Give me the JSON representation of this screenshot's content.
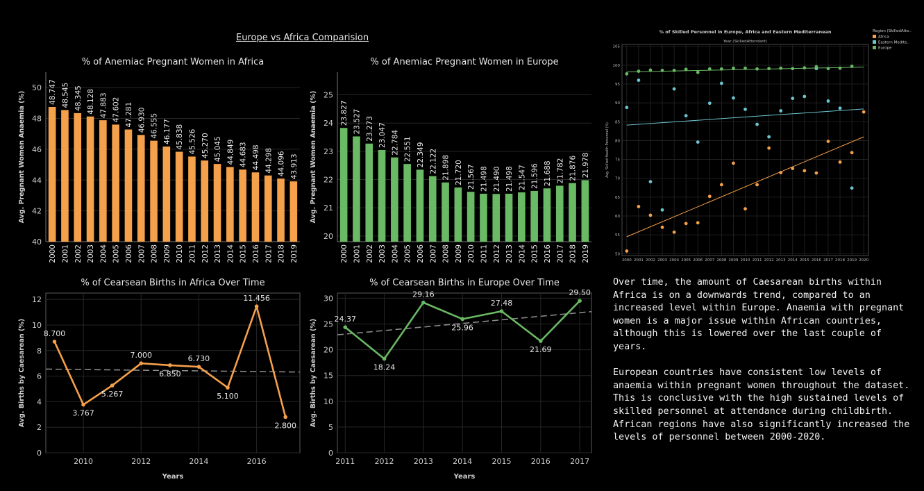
{
  "header": {
    "title": "Europe vs Africa Comparision"
  },
  "commentary": {
    "paragraphs": [
      "Over time, the amount of Caesarean births within Africa is on a downwards trend, compared to an increased level within Europe. Anaemia with pregnant women is a major issue within African countries, although this is lowered over the last couple of years.",
      "European countries have consistent low levels of anaemia within pregnant women throughout the dataset. This is conclusive with the high sustained levels of skilled personnel at attendance during childbirth. African regions have also significantly increased the levels of personnel between 2000-2020."
    ]
  },
  "colors": {
    "africa": "#f5a04a",
    "europe": "#6ab964",
    "eastern_mediterranean": "#6cc5cf",
    "background": "#000000",
    "grid": "#2b2b2b"
  },
  "chart_data": [
    {
      "id": "africa-anaemia",
      "type": "bar",
      "title": "% of Anemiac Pregnant Women in Africa",
      "ylabel": "Avg. Pregnant Women Anaemia (%)",
      "ylim": [
        40,
        51
      ],
      "yticks": [
        40,
        42,
        44,
        46,
        48,
        50
      ],
      "color": "#f5a04a",
      "categories": [
        "2000",
        "2001",
        "2002",
        "2003",
        "2004",
        "2005",
        "2006",
        "2007",
        "2008",
        "2009",
        "2010",
        "2011",
        "2012",
        "2013",
        "2014",
        "2015",
        "2016",
        "2017",
        "2018",
        "2019"
      ],
      "values": [
        48.747,
        48.545,
        48.345,
        48.128,
        47.883,
        47.602,
        47.281,
        46.93,
        46.555,
        46.177,
        45.838,
        45.526,
        45.27,
        45.045,
        44.849,
        44.683,
        44.498,
        44.298,
        44.096,
        43.913
      ],
      "labels": [
        "48.747",
        "48.545",
        "48.345",
        "48.128",
        "47.883",
        "47.602",
        "47.281",
        "46.930",
        "46.555",
        "46.177",
        "45.838",
        "45.526",
        "45.270",
        "45.045",
        "44.849",
        "44.683",
        "44.498",
        "44.298",
        "44.096",
        "43.913"
      ]
    },
    {
      "id": "europe-anaemia",
      "type": "bar",
      "title": "% of Anemiac Pregnant Women in Europe",
      "ylabel": "Avg. Pregnant Women Anaemia (%)",
      "ylim": [
        19.8,
        25.8
      ],
      "yticks": [
        20,
        21,
        22,
        23,
        24,
        25
      ],
      "color": "#6ab964",
      "categories": [
        "2000",
        "2001",
        "2002",
        "2003",
        "2004",
        "2005",
        "2006",
        "2007",
        "2008",
        "2009",
        "2010",
        "2011",
        "2012",
        "2013",
        "2014",
        "2015",
        "2016",
        "2017",
        "2018",
        "2019"
      ],
      "values": [
        23.827,
        23.527,
        23.273,
        23.047,
        22.784,
        22.551,
        22.349,
        22.122,
        21.898,
        21.72,
        21.567,
        21.498,
        21.49,
        21.498,
        21.547,
        21.596,
        21.688,
        21.782,
        21.876,
        21.978
      ],
      "labels": [
        "23.827",
        "23.527",
        "23.273",
        "23.047",
        "22.784",
        "22.551",
        "22.349",
        "22.122",
        "21.898",
        "21.720",
        "21.567",
        "21.498",
        "21.490",
        "21.498",
        "21.547",
        "21.596",
        "21.688",
        "21.782",
        "21.876",
        "21.978"
      ]
    },
    {
      "id": "africa-caesarean",
      "type": "line",
      "title": "% of Cearsean Births in Africa Over Time",
      "xlabel": "Years",
      "ylabel": "Avg. Births by Caesarean (%)",
      "xlim": [
        2008.7,
        2017.5
      ],
      "ylim": [
        0,
        12.5
      ],
      "xticks": [
        2010,
        2012,
        2014,
        2016
      ],
      "yticks": [
        0,
        2,
        4,
        6,
        8,
        10,
        12
      ],
      "color": "#f5a04a",
      "x": [
        2009,
        2010,
        2011,
        2012,
        2013,
        2014,
        2015,
        2016,
        2017
      ],
      "y": [
        8.7,
        3.767,
        5.267,
        7.0,
        6.85,
        6.73,
        5.1,
        11.456,
        2.8
      ],
      "labels": [
        "8.700",
        "3.767",
        "5.267",
        "7.000",
        "6.850",
        "6.730",
        "5.100",
        "11.456",
        "2.800"
      ],
      "trend": {
        "start": 6.55,
        "end": 6.32
      }
    },
    {
      "id": "europe-caesarean",
      "type": "line",
      "title": "% of Cearsean Births in Europe Over Time",
      "xlabel": "Years",
      "ylabel": "Avg. Births by Caesarean (%)",
      "xlim": [
        2010.8,
        2017.3
      ],
      "ylim": [
        0,
        31
      ],
      "xticks": [
        2011,
        2012,
        2013,
        2014,
        2015,
        2016,
        2017
      ],
      "yticks": [
        0,
        5,
        10,
        15,
        20,
        25,
        30
      ],
      "color": "#6ab964",
      "x": [
        2011,
        2012,
        2013,
        2014,
        2015,
        2016,
        2017
      ],
      "y": [
        24.37,
        18.24,
        29.16,
        25.96,
        27.48,
        21.69,
        29.5
      ],
      "labels": [
        "24.37",
        "18.24",
        "29.16",
        "25.96",
        "27.48",
        "21.69",
        "29.50"
      ],
      "trend": {
        "start": 22.9,
        "end": 27.4
      }
    },
    {
      "id": "skilled-personnel",
      "type": "scatter",
      "title": "% of Skilled Personnel in Europe,  Africa and Eastern Mediterranean",
      "xlabel": "Year (SkilledAttendant)",
      "ylabel": "Avg. Skilled Health Personnel (%)",
      "legend_title": "Region (SkilledAtte..",
      "legend_position": "right",
      "xlim": [
        1999.6,
        2020.4
      ],
      "ylim": [
        49.5,
        105.5
      ],
      "xticks": [
        2000,
        2001,
        2002,
        2003,
        2004,
        2005,
        2006,
        2007,
        2008,
        2009,
        2010,
        2011,
        2012,
        2013,
        2014,
        2015,
        2016,
        2017,
        2018,
        2019,
        2020
      ],
      "yticks": [
        50,
        55,
        60,
        65,
        70,
        75,
        80,
        85,
        90,
        95,
        100,
        105
      ],
      "series": [
        {
          "name": "Africa",
          "color": "#f5a04a",
          "x": [
            2000,
            2001,
            2002,
            2003,
            2004,
            2005,
            2006,
            2007,
            2008,
            2009,
            2010,
            2011,
            2012,
            2013,
            2014,
            2015,
            2016,
            2017,
            2018,
            2019,
            2020
          ],
          "y": [
            50.7,
            62.5,
            60.2,
            57.0,
            55.7,
            58.0,
            58.2,
            65.2,
            68.3,
            74.0,
            61.9,
            68.3,
            78.0,
            71.5,
            72.6,
            72.0,
            71.4,
            79.8,
            74.3,
            76.8,
            87.6
          ],
          "trend": {
            "start": 54.5,
            "end": 81.0
          }
        },
        {
          "name": "Eastern Medite..",
          "color": "#6cc5cf",
          "x": [
            2000,
            2001,
            2002,
            2003,
            2004,
            2005,
            2006,
            2007,
            2008,
            2009,
            2010,
            2011,
            2012,
            2013,
            2014,
            2015,
            2016,
            2017,
            2018,
            2019
          ],
          "y": [
            88.8,
            96.0,
            69.1,
            61.6,
            93.7,
            86.6,
            79.6,
            89.9,
            95.2,
            91.3,
            88.3,
            84.3,
            81.0,
            87.9,
            91.2,
            91.7,
            99.1,
            90.5,
            88.6,
            67.4
          ],
          "trend": {
            "start": 84.1,
            "end": 88.4
          }
        },
        {
          "name": "Europe",
          "color": "#6ab964",
          "x": [
            2000,
            2001,
            2002,
            2003,
            2004,
            2005,
            2006,
            2007,
            2008,
            2009,
            2010,
            2011,
            2012,
            2013,
            2014,
            2015,
            2016,
            2017,
            2018,
            2019
          ],
          "y": [
            97.7,
            98.4,
            98.7,
            98.6,
            98.6,
            98.9,
            98.1,
            99.0,
            99.0,
            99.2,
            99.2,
            99.0,
            99.1,
            99.2,
            99.1,
            99.3,
            99.6,
            99.1,
            99.2,
            99.7
          ],
          "trend": {
            "start": 98.2,
            "end": 99.5
          }
        }
      ]
    }
  ]
}
